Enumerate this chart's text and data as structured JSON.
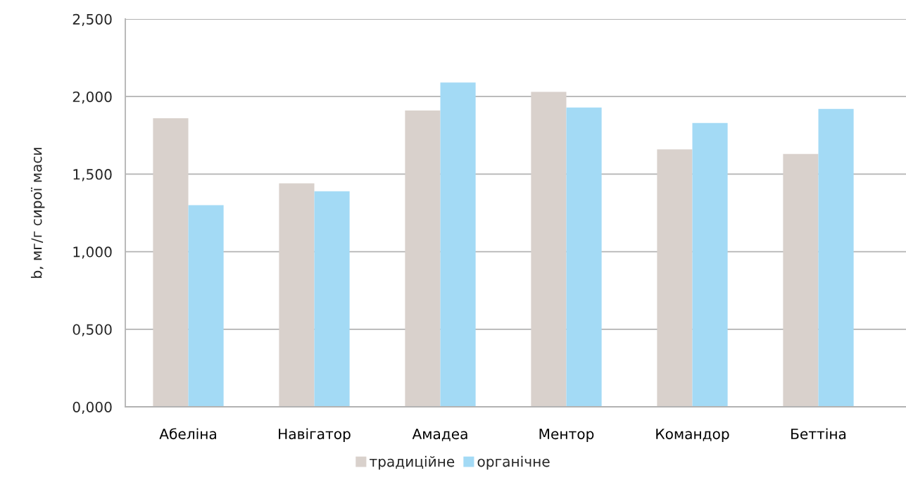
{
  "chart_data": {
    "type": "bar",
    "ylabel": "b, мг/г сирої маси",
    "categories": [
      "Абеліна",
      "Навігатор",
      "Амадеа",
      "Ментор",
      "Командор",
      "Беттіна"
    ],
    "series": [
      {
        "name": "традиційне",
        "color": "#d9d1cc",
        "values": [
          1.86,
          1.44,
          1.91,
          2.03,
          1.66,
          1.63
        ]
      },
      {
        "name": "органічне",
        "color": "#a3daf5",
        "values": [
          1.3,
          1.39,
          2.09,
          1.93,
          1.83,
          1.92
        ]
      }
    ],
    "ylim": [
      0,
      2.5
    ],
    "yticks": [
      {
        "value": 0,
        "label": "0,000"
      },
      {
        "value": 0.5,
        "label": "0,500"
      },
      {
        "value": 1,
        "label": "1,000"
      },
      {
        "value": 1.5,
        "label": "1,500"
      },
      {
        "value": 2,
        "label": "2,000"
      },
      {
        "value": 2.5,
        "label": "2,500"
      }
    ],
    "grid": "y",
    "legend": "bottom"
  }
}
